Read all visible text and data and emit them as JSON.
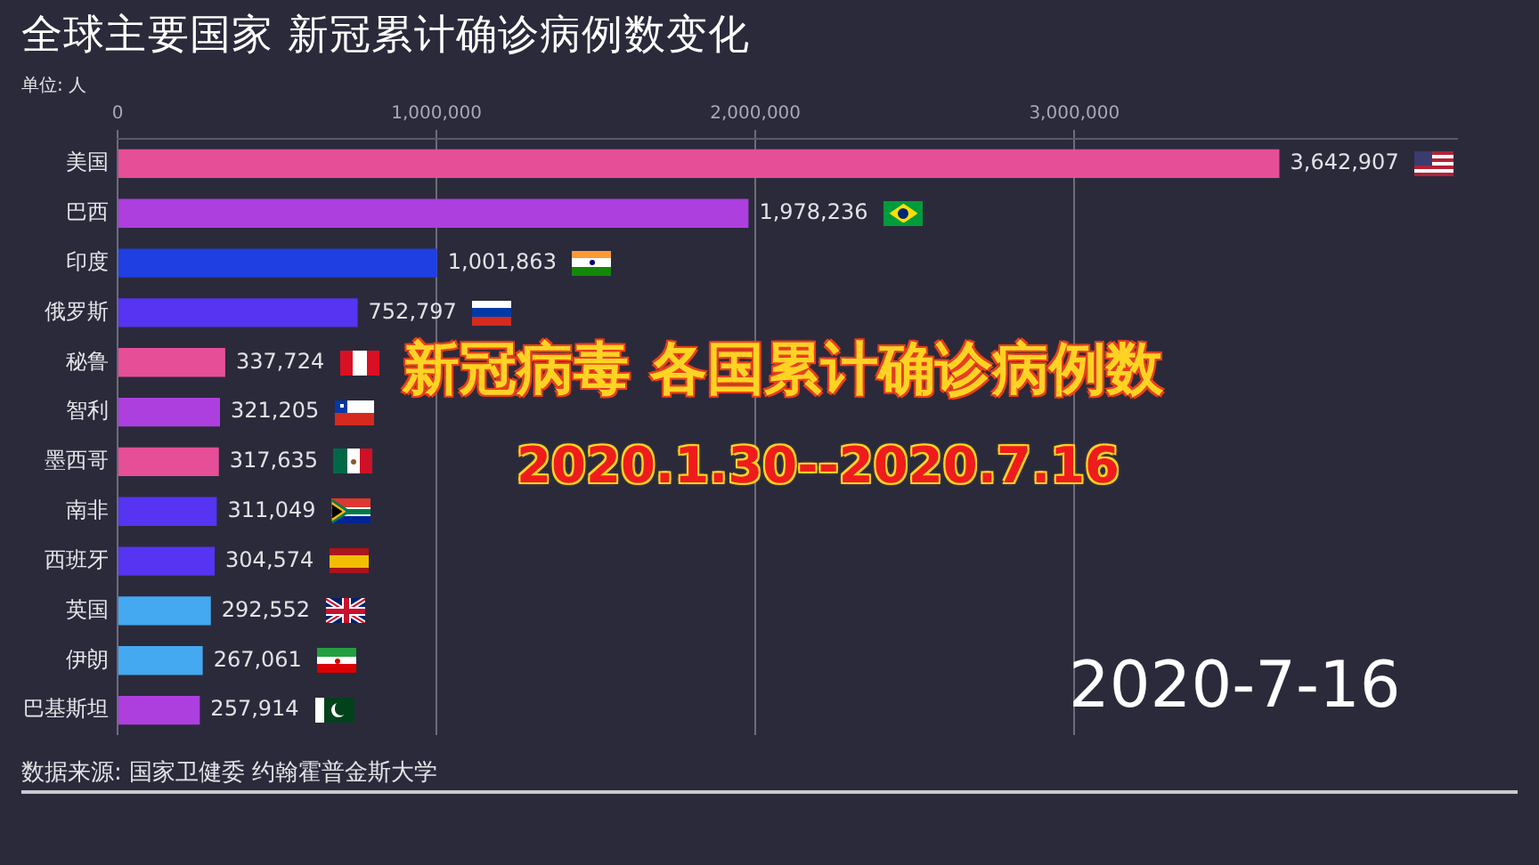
{
  "chart_data": {
    "type": "bar",
    "orientation": "horizontal",
    "title": "全球主要国家 新冠累计确诊病例数变化",
    "subtitle": "单位: 人",
    "categories": [
      "美国",
      "巴西",
      "印度",
      "俄罗斯",
      "秘鲁",
      "智利",
      "墨西哥",
      "南非",
      "西班牙",
      "英国",
      "伊朗",
      "巴基斯坦"
    ],
    "values": [
      3642907,
      1978236,
      1001863,
      752797,
      337724,
      321205,
      317635,
      311049,
      304574,
      292552,
      267061,
      257914
    ],
    "colors": [
      "#e64e98",
      "#ad3fdf",
      "#1f3fe3",
      "#5634f2",
      "#e64e98",
      "#ad3fdf",
      "#e64e98",
      "#5634f2",
      "#5634f2",
      "#44a9f0",
      "#44a9f0",
      "#ad3fdf"
    ],
    "value_labels": [
      "3,642,907",
      "1,978,236",
      "1,001,863",
      "752,797",
      "337,724",
      "321,205",
      "317,635",
      "311,049",
      "304,574",
      "292,552",
      "267,061",
      "257,914"
    ],
    "xlim": [
      0,
      4200000
    ],
    "xticks": [
      0,
      {
        "value": 1000000,
        "label": "1,000,000"
      },
      {
        "value": 2000000,
        "label": "2,000,000"
      },
      {
        "value": 3000000,
        "label": "3,000,000"
      }
    ],
    "grid": "x",
    "annotations": [
      "新冠病毒 各国累计确诊病例数",
      "2020.1.30--2020.7.16",
      "2020-7-16",
      "数据来源: 国家卫健委 约翰霍普金斯大学"
    ]
  }
}
